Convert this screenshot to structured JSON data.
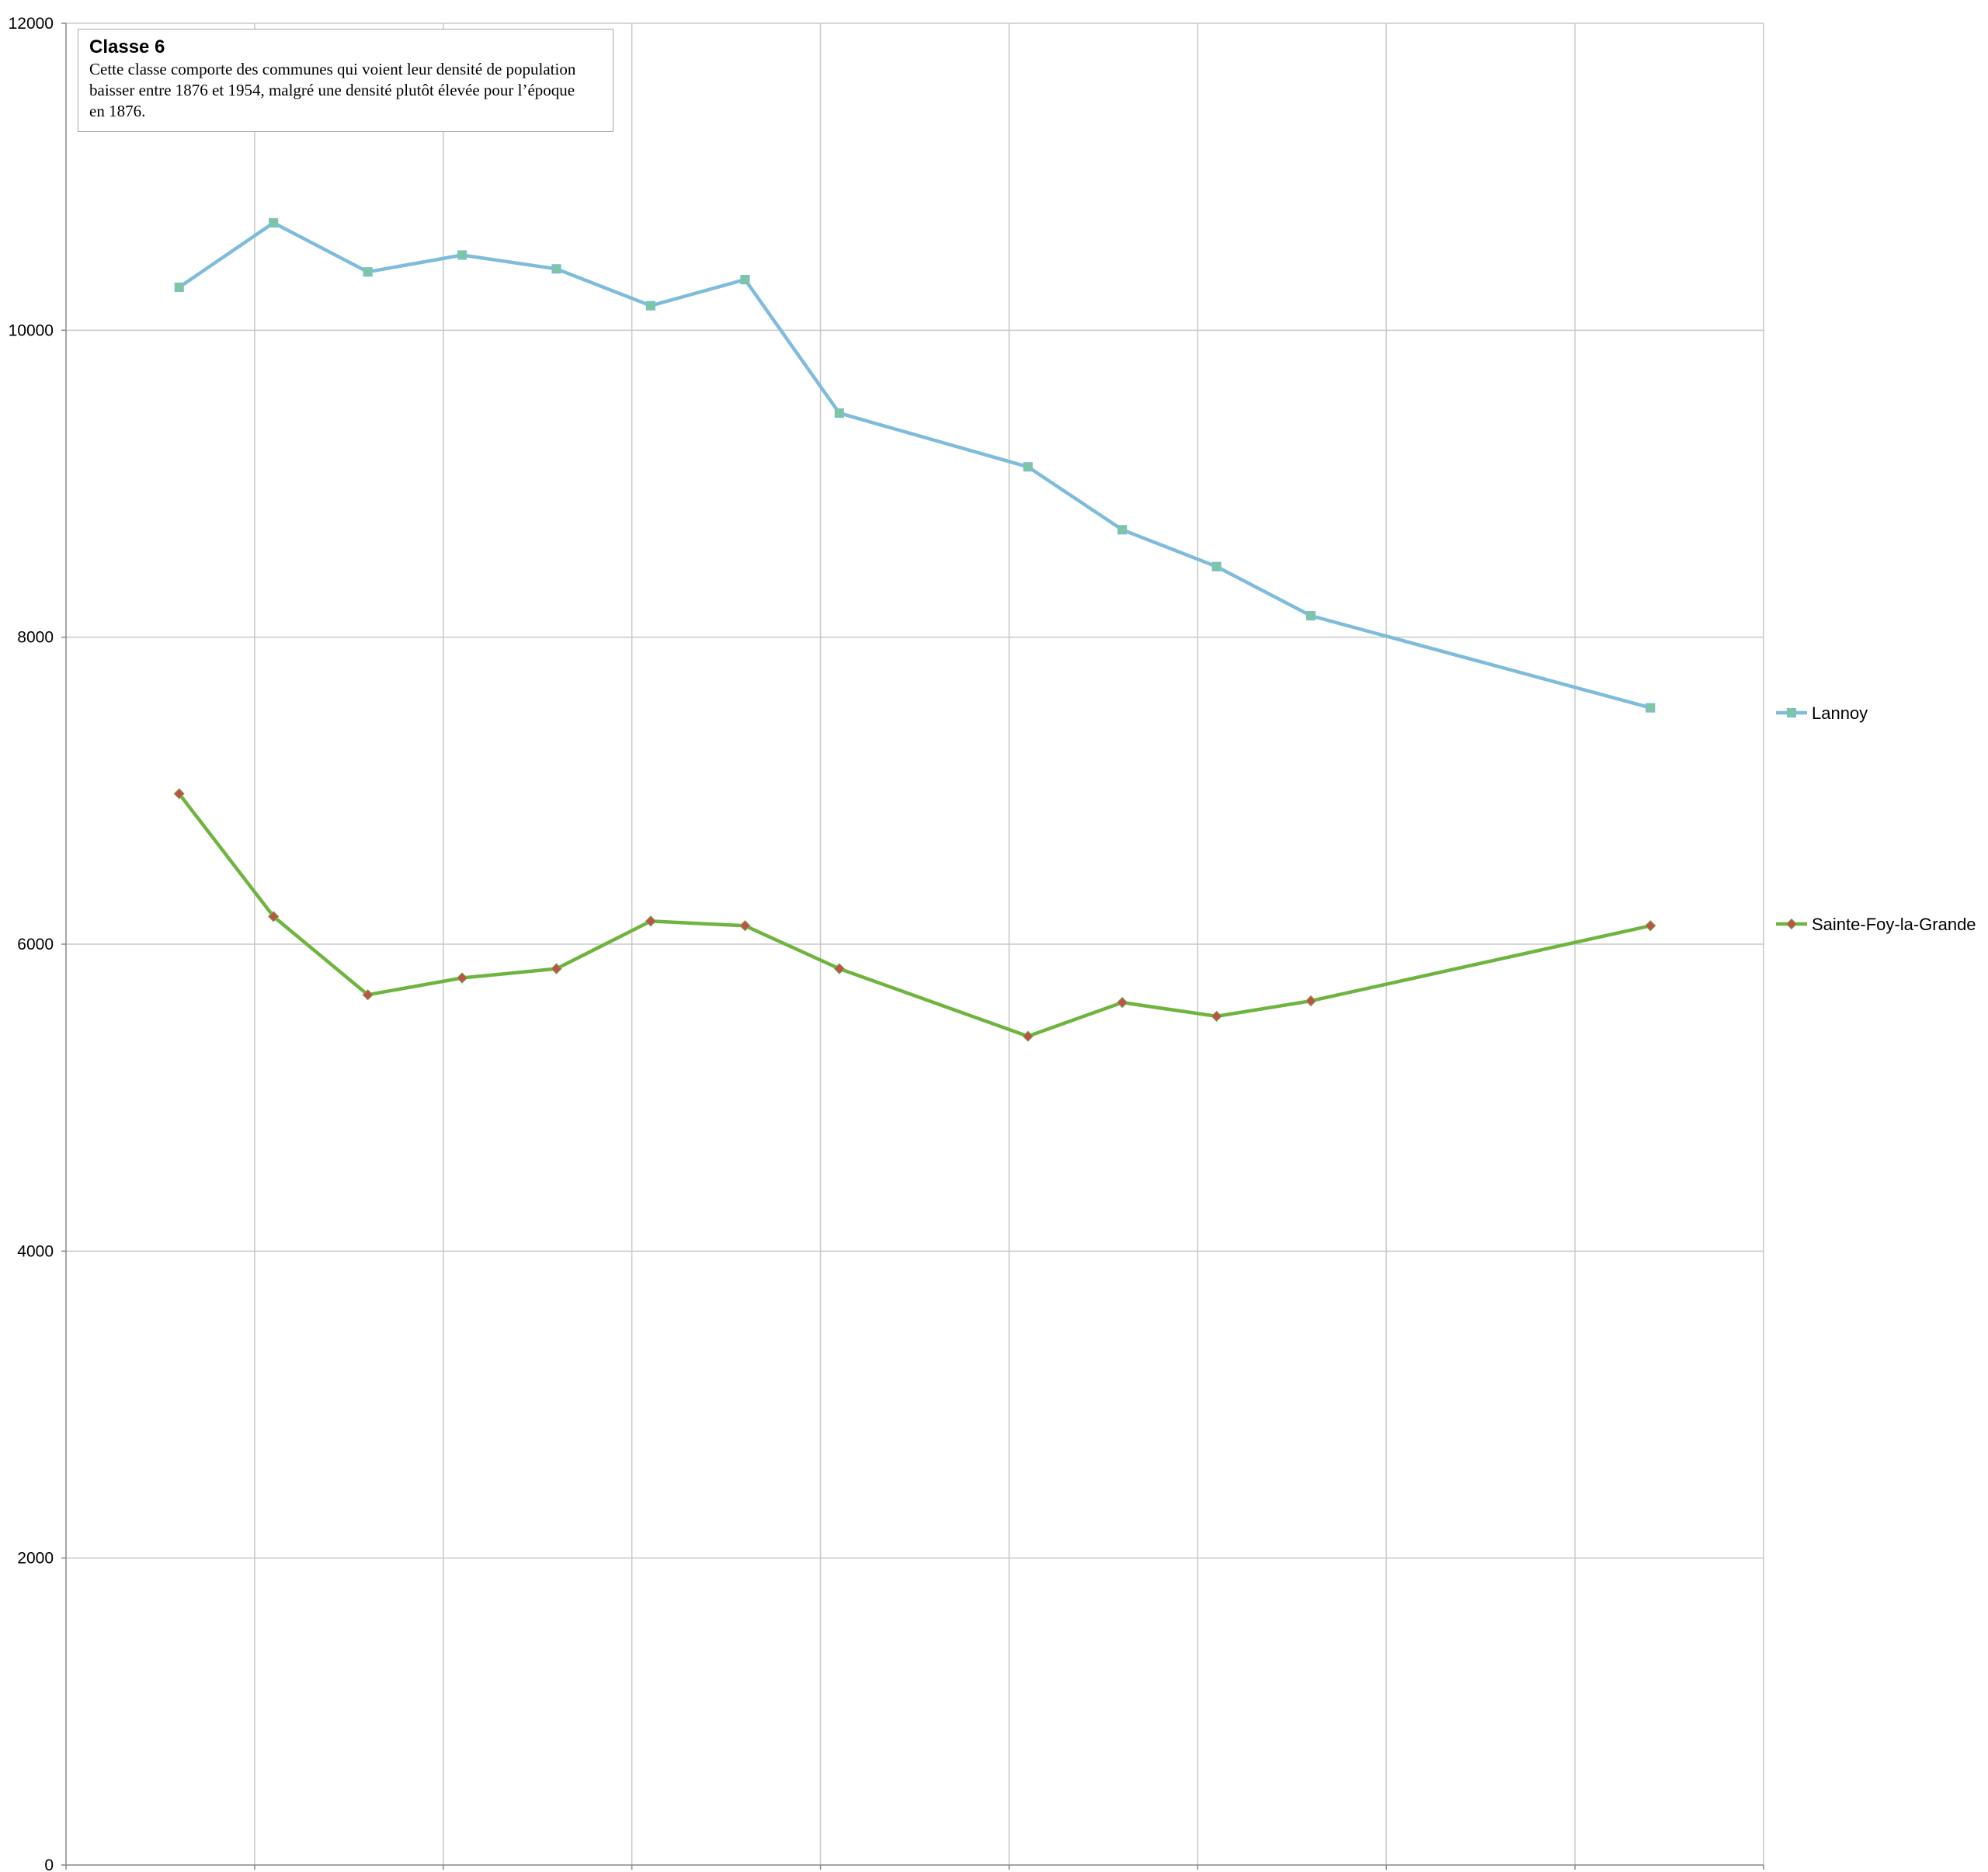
{
  "chart_data": {
    "type": "line",
    "annotation": {
      "title": "Classe 6",
      "text": "Cette classe comporte des communes  qui voient leur densité de population baisser entre 1876 et 1954, malgré une densité  plutôt élevée pour l’époque en 1876."
    },
    "xlim": [
      1870,
      1960
    ],
    "ylim": [
      0,
      12000
    ],
    "xticks": [
      "1870",
      "1880",
      "1890",
      "1900",
      "1910",
      "1920",
      "1930",
      "1940",
      "1950",
      "1960"
    ],
    "yticks": [
      "0",
      "2000",
      "4000",
      "6000",
      "8000",
      "10000",
      "12000"
    ],
    "grid": true,
    "legend_position": "right",
    "series": [
      {
        "name": "Lannoy",
        "color": "#7fbcdc",
        "marker": "square",
        "marker_color": "#7cc7a0",
        "points": [
          [
            1876,
            10280
          ],
          [
            1881,
            10700
          ],
          [
            1886,
            10380
          ],
          [
            1891,
            10490
          ],
          [
            1896,
            10400
          ],
          [
            1901,
            10160
          ],
          [
            1906,
            10330
          ],
          [
            1911,
            9460
          ],
          [
            1921,
            9110
          ],
          [
            1926,
            8700
          ],
          [
            1931,
            8460
          ],
          [
            1936,
            8140
          ],
          [
            1954,
            7540
          ]
        ]
      },
      {
        "name": "Sainte-Foy-la-Grande",
        "color": "#6fb43f",
        "marker": "diamond",
        "marker_color": "#c0504d",
        "points": [
          [
            1876,
            6980
          ],
          [
            1881,
            6180
          ],
          [
            1886,
            5670
          ],
          [
            1891,
            5780
          ],
          [
            1896,
            5840
          ],
          [
            1901,
            6150
          ],
          [
            1906,
            6120
          ],
          [
            1911,
            5840
          ],
          [
            1921,
            5400
          ],
          [
            1926,
            5620
          ],
          [
            1931,
            5530
          ],
          [
            1936,
            5630
          ],
          [
            1954,
            6120
          ]
        ]
      }
    ]
  }
}
